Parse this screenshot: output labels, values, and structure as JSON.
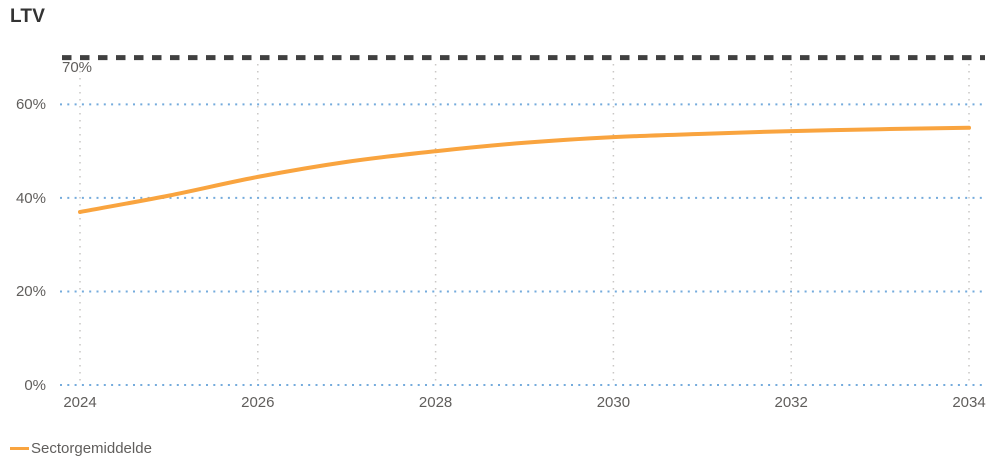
{
  "chart_data": {
    "type": "line",
    "title": "LTV",
    "x": [
      2024,
      2025,
      2026,
      2027,
      2028,
      2029,
      2030,
      2031,
      2032,
      2033,
      2034
    ],
    "series": [
      {
        "name": "Sectorgemiddelde",
        "color": "#F9A43F",
        "values": [
          37,
          40.5,
          44.5,
          47.7,
          50,
          51.8,
          53,
          53.7,
          54.3,
          54.7,
          55
        ]
      }
    ],
    "xlabel": "",
    "ylabel": "LTV",
    "ylim": [
      0,
      70
    ],
    "y_ticks": [
      0,
      20,
      40,
      60
    ],
    "y_tick_labels": [
      "0%",
      "20%",
      "40%",
      "60%"
    ],
    "x_ticks": [
      2024,
      2026,
      2028,
      2030,
      2032,
      2034
    ],
    "x_tick_labels": [
      "2024",
      "2026",
      "2028",
      "2030",
      "2032",
      "2034"
    ],
    "reference_line": {
      "value": 70,
      "label": "70%",
      "style": "dashed"
    },
    "grid": "dotted",
    "legend_position": "bottom-left"
  },
  "legend": {
    "items": [
      {
        "label": "Sectorgemiddelde",
        "color": "#F9A43F"
      }
    ]
  },
  "colors": {
    "series_orange": "#F9A43F",
    "grid_blue_dotted": "#74ABDC",
    "grid_gray_dotted": "#C9C7C5",
    "reference_line_dark": "#404040",
    "axis_text": "#605E5C",
    "title_text": "#333333",
    "background": "#FFFFFF"
  }
}
